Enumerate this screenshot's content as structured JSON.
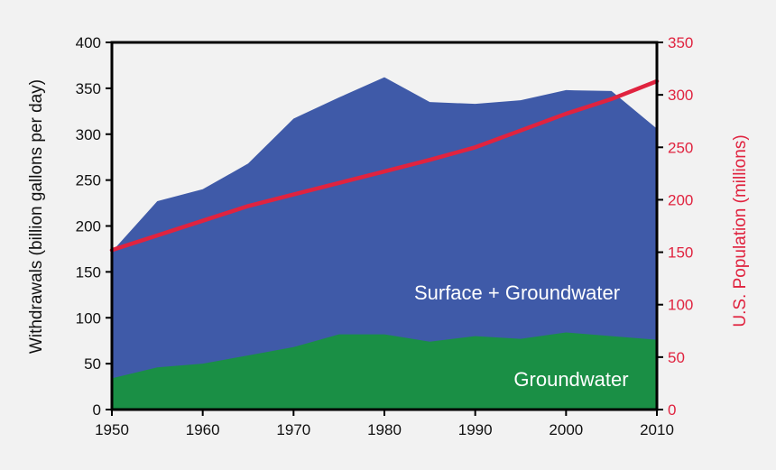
{
  "chart_data": {
    "type": "area",
    "title": "",
    "x": [
      1950,
      1955,
      1960,
      1965,
      1970,
      1975,
      1980,
      1985,
      1990,
      1995,
      2000,
      2005,
      2010
    ],
    "xlim": [
      1950,
      2010
    ],
    "xticks": [
      "1950",
      "1960",
      "1970",
      "1980",
      "1990",
      "2000",
      "2010"
    ],
    "y_left": {
      "label": "Withdrawals (billion gallons per day)",
      "ylim": [
        0,
        400
      ],
      "ticks": [
        "0",
        "50",
        "100",
        "150",
        "200",
        "250",
        "300",
        "350",
        "400"
      ]
    },
    "y_right": {
      "label": "U.S. Population (millions)",
      "ylim": [
        0,
        350
      ],
      "ticks": [
        "0",
        "50",
        "100",
        "150",
        "200",
        "250",
        "300",
        "350"
      ]
    },
    "series": [
      {
        "name": "Surface + Groundwater",
        "axis": "left",
        "kind": "area",
        "color": "#3f5aa8",
        "values": [
          172,
          227,
          240,
          268,
          317,
          340,
          362,
          335,
          333,
          337,
          348,
          347,
          306
        ]
      },
      {
        "name": "Groundwater",
        "axis": "left",
        "kind": "area",
        "color": "#1a8f45",
        "values": [
          34,
          46,
          50,
          59,
          68,
          82,
          82,
          74,
          80,
          77,
          84,
          80,
          76
        ]
      },
      {
        "kind": "line",
        "axis": "right",
        "color": "#e0233f",
        "values": [
          152,
          166,
          180,
          194,
          205,
          216,
          227,
          238,
          250,
          266,
          282,
          296,
          313
        ]
      }
    ],
    "grid": false,
    "legend": "none"
  }
}
